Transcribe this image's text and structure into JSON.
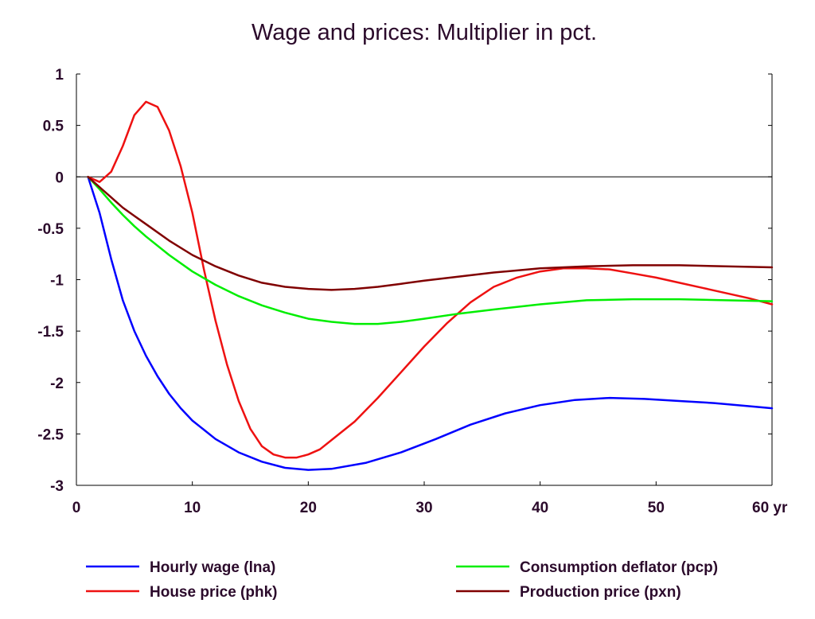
{
  "chart_data": {
    "type": "line",
    "title": "Wage and prices: Multiplier in pct.",
    "xlabel": "",
    "ylabel": "",
    "x_unit_label": "yr",
    "xlim": [
      0,
      60
    ],
    "ylim": [
      -3,
      1
    ],
    "x_ticks": [
      0,
      10,
      20,
      30,
      40,
      50,
      60
    ],
    "y_ticks": [
      1,
      0.5,
      0,
      -0.5,
      -1,
      -1.5,
      -2,
      -2.5,
      -3
    ],
    "x_tick_labels": [
      "0",
      "10",
      "20",
      "30",
      "40",
      "50",
      "60 yr"
    ],
    "y_tick_labels": [
      "1",
      "0.5",
      "0",
      "-0.5",
      "-1",
      "-1.5",
      "-2",
      "-2.5",
      "-3"
    ],
    "grid": false,
    "zero_line": true,
    "legend_position": "bottom",
    "series": [
      {
        "name": "Hourly wage (lna)",
        "color": "#0000ff",
        "x": [
          1,
          2,
          3,
          4,
          5,
          6,
          7,
          8,
          9,
          10,
          12,
          14,
          16,
          18,
          20,
          22,
          25,
          28,
          31,
          34,
          37,
          40,
          43,
          46,
          49,
          52,
          55,
          58,
          60
        ],
        "y": [
          0,
          -0.35,
          -0.8,
          -1.2,
          -1.5,
          -1.74,
          -1.94,
          -2.11,
          -2.25,
          -2.37,
          -2.55,
          -2.68,
          -2.77,
          -2.83,
          -2.85,
          -2.84,
          -2.78,
          -2.68,
          -2.55,
          -2.41,
          -2.3,
          -2.22,
          -2.17,
          -2.15,
          -2.16,
          -2.18,
          -2.2,
          -2.23,
          -2.25
        ]
      },
      {
        "name": "House price (phk)",
        "color": "#ee1111",
        "x": [
          1,
          2,
          3,
          4,
          5,
          6,
          7,
          8,
          9,
          10,
          11,
          12,
          13,
          14,
          15,
          16,
          17,
          18,
          19,
          20,
          21,
          22,
          24,
          26,
          28,
          30,
          32,
          34,
          36,
          38,
          40,
          42,
          44,
          46,
          48,
          50,
          52,
          54,
          56,
          58,
          60
        ],
        "y": [
          0,
          -0.05,
          0.05,
          0.3,
          0.6,
          0.73,
          0.68,
          0.45,
          0.1,
          -0.35,
          -0.9,
          -1.4,
          -1.83,
          -2.18,
          -2.45,
          -2.62,
          -2.7,
          -2.73,
          -2.73,
          -2.7,
          -2.65,
          -2.56,
          -2.38,
          -2.15,
          -1.9,
          -1.65,
          -1.42,
          -1.22,
          -1.07,
          -0.98,
          -0.92,
          -0.89,
          -0.89,
          -0.9,
          -0.94,
          -0.98,
          -1.03,
          -1.08,
          -1.13,
          -1.18,
          -1.24
        ]
      },
      {
        "name": "Consumption deflator (pcp)",
        "color": "#00ee00",
        "x": [
          1,
          2,
          3,
          4,
          5,
          6,
          8,
          10,
          12,
          14,
          16,
          18,
          20,
          22,
          24,
          26,
          28,
          30,
          33,
          36,
          40,
          44,
          48,
          52,
          56,
          60
        ],
        "y": [
          0,
          -0.12,
          -0.25,
          -0.37,
          -0.48,
          -0.58,
          -0.76,
          -0.92,
          -1.05,
          -1.16,
          -1.25,
          -1.32,
          -1.38,
          -1.41,
          -1.43,
          -1.43,
          -1.41,
          -1.38,
          -1.33,
          -1.29,
          -1.24,
          -1.2,
          -1.19,
          -1.19,
          -1.2,
          -1.21
        ]
      },
      {
        "name": "Production price (pxn)",
        "color": "#800000",
        "x": [
          1,
          2,
          3,
          4,
          5,
          6,
          8,
          10,
          12,
          14,
          16,
          18,
          20,
          22,
          24,
          26,
          28,
          30,
          33,
          36,
          40,
          44,
          48,
          52,
          56,
          60
        ],
        "y": [
          0,
          -0.1,
          -0.2,
          -0.3,
          -0.38,
          -0.46,
          -0.62,
          -0.76,
          -0.87,
          -0.96,
          -1.03,
          -1.07,
          -1.09,
          -1.1,
          -1.09,
          -1.07,
          -1.04,
          -1.01,
          -0.97,
          -0.93,
          -0.89,
          -0.87,
          -0.86,
          -0.86,
          -0.87,
          -0.88
        ]
      }
    ]
  }
}
